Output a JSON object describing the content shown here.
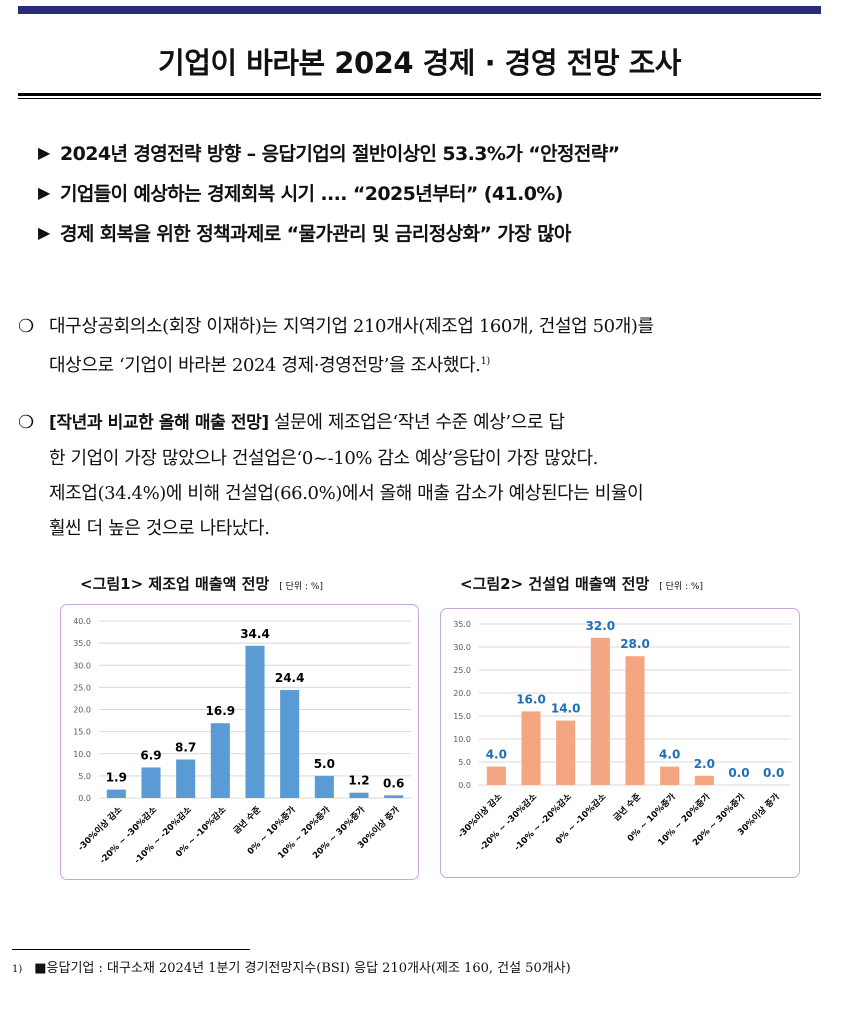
{
  "title": "기업이 바라본 2024 경제 · 경영 전망 조사",
  "highlights": [
    "2024년 경영전략 방향 – 응답기업의 절반이상인 53.3%가  “안정전략”",
    "기업들이 예상하는 경제회복 시기 ....  “2025년부터” (41.0%)",
    "경제 회복을 위한 정책과제로  “물가관리 및 금리정상화” 가장 많아"
  ],
  "paragraph1": {
    "lines": [
      "대구상공회의소(회장 이재하)는 지역기업 210개사(제조업 160개, 건설업 50개)를",
      "대상으로 ‘기업이 바라본 2024 경제·경영전망’을 조사했다."
    ],
    "footnote_ref": "1)"
  },
  "paragraph2": {
    "heading": "[작년과 비교한 올해 매출 전망]",
    "line1_rest": " 설문에 제조업은‘작년 수준 예상’으로 답",
    "lines": [
      "한 기업이 가장 많았으나 건설업은‘0~-10% 감소 예상’응답이 가장 많았다.",
      "제조업(34.4%)에 비해 건설업(66.0%)에서 올해 매출 감소가 예상된다는 비율이",
      "훨씬 더 높은 것으로 나타났다."
    ]
  },
  "chart_data": [
    {
      "type": "bar",
      "title": "<그림1> 제조업 매출액 전망",
      "unit": "[ 단위 : %]",
      "categories": [
        "-30%이상 감소",
        "-20% ~ -30%감소",
        "-10% ~ -20%감소",
        "0% ~ -10%감소",
        "금년 수준",
        "0% ~ 10%증가",
        "10% ~ 20%증가",
        "20% ~ 30%증가",
        "30%이상 증가"
      ],
      "values": [
        1.9,
        6.9,
        8.7,
        16.9,
        34.4,
        24.4,
        5.0,
        1.2,
        0.6
      ],
      "yticks": [
        "0.0",
        "5.0",
        "10.0",
        "15.0",
        "20.0",
        "25.0",
        "30.0",
        "35.0",
        "40.0"
      ],
      "ylim": [
        0,
        40
      ],
      "grid": true,
      "bar_color": "#5b9bd5",
      "label_color": "#000000"
    },
    {
      "type": "bar",
      "title": "<그림2> 건설업 매출액 전망",
      "unit": "[ 단위 : %]",
      "categories": [
        "-30%이상 감소",
        "-20% ~ -30%감소",
        "-10% ~ -20%감소",
        "0% ~ -10%감소",
        "금년 수준",
        "0% ~ 10%증가",
        "10% ~ 20%증가",
        "20% ~ 30%증가",
        "30%이상 증가"
      ],
      "values": [
        4.0,
        16.0,
        14.0,
        32.0,
        28.0,
        4.0,
        2.0,
        0.0,
        0.0
      ],
      "yticks": [
        "0.0",
        "5.0",
        "10.0",
        "15.0",
        "20.0",
        "25.0",
        "30.0",
        "35.0"
      ],
      "ylim": [
        0,
        35
      ],
      "grid": true,
      "bar_color": "#f4a582",
      "label_color": "#1f6fb5"
    }
  ],
  "footnote": {
    "number": "1)",
    "text": "■응답기업 : 대구소재 2024년 1분기 경기전망지수(BSI) 응답 210개사(제조 160, 건설 50개사)"
  },
  "colors": {
    "top_bar": "#2a2a7a",
    "chart_border": "#c9a8d8"
  }
}
